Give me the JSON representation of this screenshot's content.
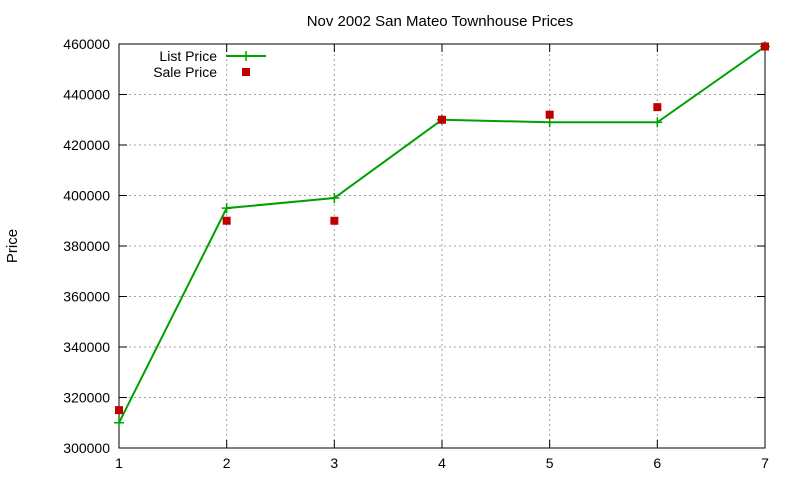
{
  "chart_data": {
    "type": "line",
    "title": "Nov 2002 San Mateo Townhouse Prices",
    "xlabel": "",
    "ylabel": "Price",
    "x": [
      1,
      2,
      3,
      4,
      5,
      6,
      7
    ],
    "xlim": [
      1,
      7
    ],
    "ylim": [
      300000,
      460000
    ],
    "x_ticks": [
      "1",
      "2",
      "3",
      "4",
      "5",
      "6",
      "7"
    ],
    "y_ticks": [
      "300000",
      "320000",
      "340000",
      "360000",
      "380000",
      "400000",
      "420000",
      "440000",
      "460000"
    ],
    "grid": true,
    "legend_position": "top-left",
    "series": [
      {
        "name": "List Price",
        "style": "line-with-plus-markers",
        "color": "#00a000",
        "values": [
          310000,
          395000,
          399000,
          430000,
          429000,
          429000,
          459000
        ]
      },
      {
        "name": "Sale Price",
        "style": "square-markers",
        "color": "#c00000",
        "values": [
          315000,
          390000,
          390000,
          430000,
          432000,
          435000,
          459000
        ]
      }
    ]
  }
}
